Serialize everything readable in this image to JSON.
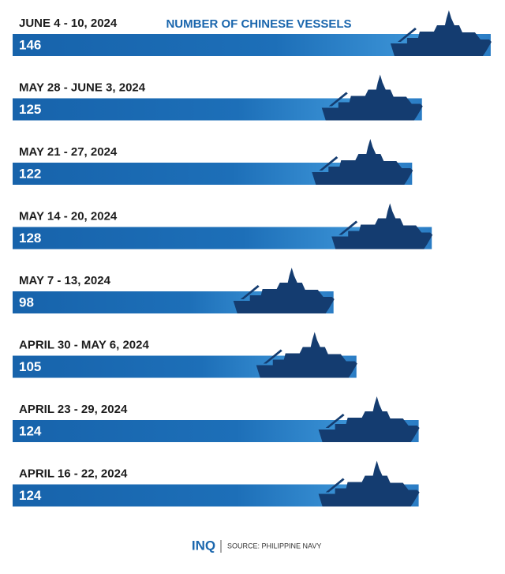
{
  "chart_data": {
    "type": "bar",
    "orientation": "horizontal",
    "title": "NUMBER OF CHINESE VESSELS",
    "categories": [
      "JUNE 4 - 10, 2024",
      "MAY 28 - JUNE 3, 2024",
      "MAY 21 - 27, 2024",
      "MAY 14 - 20, 2024",
      "MAY 7 - 13, 2024",
      "APRIL 30 - MAY 6, 2024",
      "APRIL 23 - 29, 2024",
      "APRIL 16 - 22, 2024"
    ],
    "values": [
      146,
      125,
      122,
      128,
      98,
      105,
      124,
      124
    ],
    "color": "#1a6bb3",
    "footer": {
      "brand": "INQ",
      "source": "SOURCE: PHILIPPINE NAVY"
    }
  }
}
